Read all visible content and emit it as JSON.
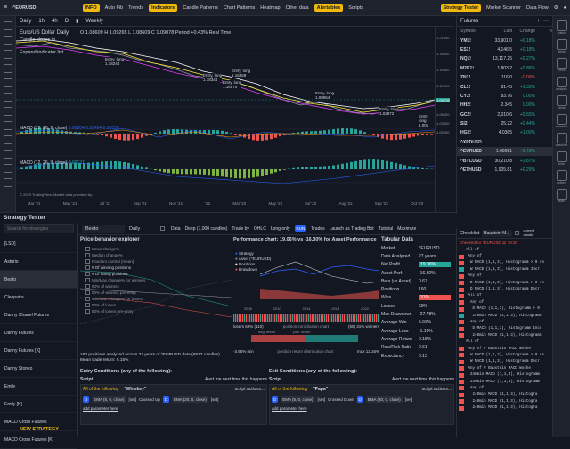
{
  "topbar": {
    "symbol": "^EURUSD",
    "items": [
      "INFO",
      "Auto Fib",
      "Trends",
      "Indicators",
      "Candle Patterns",
      "Chart Patterns",
      "Heatmap",
      "Other data",
      "Alertables",
      "Scripts"
    ],
    "right": [
      "Strategy Tester",
      "Market Scanner",
      "Data Flow"
    ]
  },
  "chart_toolbar": {
    "interval": "Daily",
    "items": [
      "1h",
      "4h",
      "D"
    ],
    "weekly": "Weekly"
  },
  "chart": {
    "title": "Euro/US Dollar  Daily",
    "ohlc": "O 1.08609  H 1.09265  L 1.08609  C 1.09078   Period +0.43%   Real Time",
    "line2": "Candle closes in",
    "expand": "Expand indicator list",
    "macd1": "MACD (12, 26, 9, close)",
    "macd1_values": "0.00804   0.00464  0.00339",
    "macd2": "MACD (12, 26, 9, close)",
    "macd2_value": "0.00137",
    "entries": [
      {
        "label": "Entry, long",
        "price": "1.18244"
      },
      {
        "label": "Entry, long",
        "price": "1.18344"
      },
      {
        "label": "Entry, long",
        "price": "1.16570"
      },
      {
        "label": "Entry, long",
        "price": "1.16459"
      },
      {
        "label": "Entry, long",
        "price": "1.00954"
      },
      {
        "label": "Entry, long",
        "price": "1.02872"
      },
      {
        "label": "Entry, long",
        "price": "1.001"
      }
    ],
    "time_labels": [
      "Mar '21",
      "May '21",
      "Jul '21",
      "Sep '21",
      "Nov '21",
      "'22",
      "Mar '22",
      "May '22",
      "Jul '22",
      "Aug '22",
      "Sep '22",
      "Oct '23"
    ],
    "price_labels": [
      "1.21000",
      "1.18000",
      "1.15000",
      "1.12000",
      "1.09078",
      "1.06000",
      "1.03000",
      "1.00000"
    ],
    "copyright": "© 2023 TradingView. Market data provided by..."
  },
  "watchlist": {
    "title": "Futures",
    "columns": [
      "Symbol",
      "Last",
      "Change",
      "%"
    ],
    "rows": [
      {
        "sym": "YM1!",
        "last": "33,901.0",
        "chg": "+0.18%",
        "dir": "pos"
      },
      {
        "sym": "ES1!",
        "last": "4,146.5",
        "chg": "+0.18%",
        "dir": "pos"
      },
      {
        "sym": "NQ1!",
        "last": "13,117.25",
        "chg": "+0.27%",
        "dir": "pos"
      },
      {
        "sym": "M2K1!",
        "last": "1,803.2",
        "chg": "+0.86%",
        "dir": "pos"
      },
      {
        "sym": "ZN1!",
        "last": "116.0",
        "chg": "-0.09%",
        "dir": "neg"
      },
      {
        "sym": "CL1!",
        "last": "81.45",
        "chg": "+1.33%",
        "dir": "pos"
      },
      {
        "sym": "CY2!",
        "last": "83.76",
        "chg": "0.00%",
        "dir": "pos"
      },
      {
        "sym": "HH2!",
        "last": "2.345",
        "chg": "0.00%",
        "dir": "pos"
      },
      {
        "sym": "GC2!",
        "last": "2,010.6",
        "chg": "+0.65%",
        "dir": "pos"
      },
      {
        "sym": "SI2!",
        "last": "25.22",
        "chg": "+0.44%",
        "dir": "pos"
      },
      {
        "sym": "HG2!",
        "last": "4.0365",
        "chg": "+1.00%",
        "dir": "pos"
      },
      {
        "sym": "^XPDUSD",
        "last": "",
        "chg": "",
        "dir": "pos"
      },
      {
        "sym": "^EURUSD",
        "last": "1.09081",
        "chg": "+0.43%",
        "dir": "pos",
        "active": true
      },
      {
        "sym": "^BTCUSD",
        "last": "30,210.8",
        "chg": "+1.87%",
        "dir": "pos"
      },
      {
        "sym": "^ETHUSD",
        "last": "1,905.81",
        "chg": "+0.29%",
        "dir": "pos"
      }
    ]
  },
  "rightbar": [
    "watch",
    "alerts",
    "news",
    "analysis",
    "ideas",
    "screener",
    "checklist",
    "bots",
    "options",
    "learn"
  ],
  "strategy": {
    "title": "Strategy Tester",
    "search_placeholder": "Search for strategies",
    "items": [
      "[LSD]",
      "Asturio",
      "Beato",
      "Cleopatra",
      "Danny Chanel Futures",
      "Danny Futures",
      "Danny Futures [K]",
      "Danny Stonko",
      "Emily",
      "Emily [K]",
      "MACD Cross Futures",
      "MACD Cross Futures [K]"
    ],
    "new_button": "NEW STRATEGY",
    "header": {
      "name": "Beato",
      "interval": "Daily",
      "data": "Data",
      "depth": "Deep (7,000 candles)",
      "trade_by": "Trade by",
      "ohlc": "OHLC",
      "direction": "Long only",
      "run": "RUN",
      "trades": "Trades",
      "launch": "Launch as Trading Bot",
      "tutorial": "Tutorial",
      "maximize": "Maximize"
    },
    "price_behavior": {
      "title": "Price behavior explorer",
      "options": [
        "Mean change%",
        "Median change%",
        "Random control (mean)",
        "# Of winning positions",
        "# Of losing positions",
        "Min/Max change% for winners",
        "90% of winners",
        "90% of winners pre-entry",
        "Min/Max change% for losers",
        "90% of losers",
        "90% of losers pre-entry"
      ],
      "summary": "160 positions analyzed across 27 years of ^EURUSD data (6977 candles). Mean trade return: 0.15%"
    },
    "performance": {
      "title": "Performance chart: 19.06% vs -16.30% for Asset Performance",
      "legend": [
        "Strategy",
        "Asset (^EURUSD)",
        "Positions",
        "Drawdown"
      ],
      "years": [
        "2006",
        "2010",
        "2014",
        "2018",
        "2022"
      ],
      "losers": "losers 69% (110)",
      "contrib": "position contribution chart",
      "winners": "(50) 31% winners",
      "neg_return": "neg. return",
      "pos_return": "pos. return",
      "min": "-3.95% min",
      "dist": "position return distribution chart",
      "max": "max 12.16%"
    },
    "tabular": {
      "title": "Tabular Data",
      "rows": [
        {
          "k": "Market",
          "v": "^EURUSD"
        },
        {
          "k": "Data Analyzed",
          "v": "27 years"
        },
        {
          "k": "Net Profit",
          "v": "19.06%",
          "hl": "pos"
        },
        {
          "k": "Asset Perf.",
          "v": "-16.30%"
        },
        {
          "k": "Beta (vs Asset)",
          "v": "0.67"
        },
        {
          "k": "Positions",
          "v": "160"
        },
        {
          "k": "Wins",
          "v": "31%",
          "hl": "neg"
        },
        {
          "k": "Losses",
          "v": "69%"
        },
        {
          "k": "Max Drawdown",
          "v": "-27.78%"
        },
        {
          "k": "Average Win",
          "v": "5.03%"
        },
        {
          "k": "Average Loss",
          "v": "-1.19%"
        },
        {
          "k": "Average Return",
          "v": "0.15%"
        },
        {
          "k": "Rew/Risk Ratio",
          "v": "2.61"
        },
        {
          "k": "Expectancy",
          "v": "0.13"
        }
      ]
    },
    "entry": {
      "title": "Entry Conditions (any of the following):",
      "script": "Script",
      "alert": "Alert me next time this happens",
      "actions": "script actions...",
      "all": "All of the following",
      "name": "\"Whiskey\"",
      "d": "D",
      "ema1": "EMA (5, 0, close)",
      "set1": "[set]",
      "crossed": "Crossed Up",
      "ema2": "EMA (20, 0, close)",
      "set2": "[set]",
      "add": "add parameter here"
    },
    "exit": {
      "title": "Exit Conditions (any of the following):",
      "script": "Script",
      "alert": "Alert me next time this happens",
      "actions": "script actions...",
      "all": "All of the following",
      "name": "\"Papa\"",
      "d": "D",
      "ema1": "EMA (5, 0, close)",
      "set1": "[set]",
      "crossed": "Crossed Down",
      "ema2": "EMA (20, 0, close)",
      "set2": "[set]",
      "add": "add parameter here"
    }
  },
  "checklist": {
    "title": "Checklist",
    "name": "Baustein M...",
    "current": "current",
    "candle": "candle",
    "checked": "Checked for ^EURUSD @ 19:30",
    "rows": [
      {
        "t": "All of",
        "c": ""
      },
      {
        "t": " Any of",
        "c": "#ef5350"
      },
      {
        "t": "  W MACD (1,1,3), Histogramm > 0 vs",
        "c": "#ef5350"
      },
      {
        "t": "  W MACD (1,1,3), Histogramm Incr",
        "c": "#26a69a"
      },
      {
        "t": " Any of",
        "c": "#ef5350"
      },
      {
        "t": "  D MACD (1,1,3), Histogramm > 0 vs",
        "c": "#ef5350"
      },
      {
        "t": "  D MACD (1,1,3), Histogramm Decr",
        "c": "#ef5350"
      },
      {
        "t": " All of",
        "c": "#ef5350"
      },
      {
        "t": "  Any of",
        "c": "#ef5350"
      },
      {
        "t": "   D MACD (1,1,3), Histogramm > 0",
        "c": "#ef5350"
      },
      {
        "t": "   240min MACD (1,1,3), Histogramm",
        "c": "#26a69a"
      },
      {
        "t": "  Any of",
        "c": "#ef5350"
      },
      {
        "t": "   D MACD (1,1,3), Histogramm Incr",
        "c": "#ef5350"
      },
      {
        "t": "   240min MACD (1,1,3), Histogramm",
        "c": "#ef5350"
      },
      {
        "t": "All of",
        "c": ""
      },
      {
        "t": " Any of # Baustein MACD Woche",
        "c": "#ef5350"
      },
      {
        "t": "  W MACD (1,1,3), Histogramm > 0 vs",
        "c": "#ef5350"
      },
      {
        "t": "  W MACD (1,1,3), Histogramm Decr",
        "c": "#ef5350"
      },
      {
        "t": " Any of # Baustein MACD Woche",
        "c": "#ef5350"
      },
      {
        "t": "  240min MACD (1,1,3), Histogramm",
        "c": "#ef5350"
      },
      {
        "t": "  240min MACD (1,1,3), Histogramm",
        "c": "#ef5350"
      },
      {
        "t": "  Any of",
        "c": "#ef5350"
      },
      {
        "t": "   240min MACD (1,1,3), Histogra",
        "c": "#ef5350"
      },
      {
        "t": "   240min MACD (1,1,3), Histogra",
        "c": "#ef5350"
      },
      {
        "t": "   240min MACD (1,1,3), Histogra",
        "c": "#ef5350"
      }
    ]
  },
  "colors": {
    "up": "#26a69a",
    "down": "#ef5350",
    "accent": "#2962ff",
    "brand": "#f0b90b"
  }
}
